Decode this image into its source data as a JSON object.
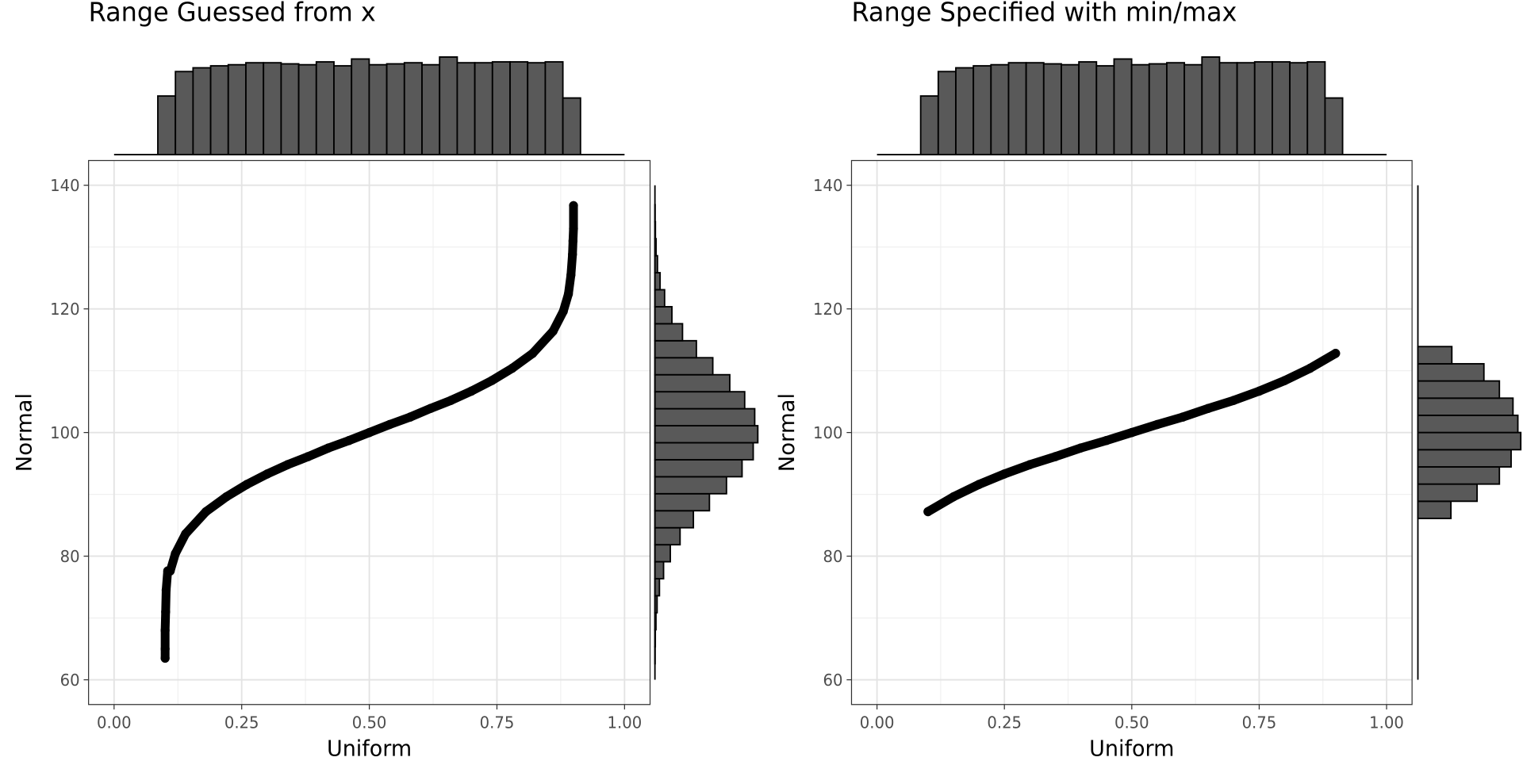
{
  "chart_data": [
    {
      "type": "scatter",
      "title": "Range Guessed from x",
      "x_label": "Uniform",
      "y_label": "Normal",
      "x": [
        0.1,
        0.1,
        0.1,
        0.101,
        0.102,
        0.105,
        0.11,
        0.12,
        0.14,
        0.18,
        0.22,
        0.26,
        0.3,
        0.34,
        0.38,
        0.42,
        0.46,
        0.5,
        0.54,
        0.58,
        0.62,
        0.66,
        0.7,
        0.74,
        0.78,
        0.82,
        0.86,
        0.88,
        0.89,
        0.895,
        0.898,
        0.899,
        0.9,
        0.9
      ],
      "y": [
        63.5,
        65,
        68,
        71,
        74.5,
        77.6,
        77.6,
        80.4,
        83.6,
        87.2,
        89.6,
        91.6,
        93.3,
        94.8,
        96.1,
        97.5,
        98.7,
        100,
        101.3,
        102.5,
        103.9,
        105.2,
        106.7,
        108.4,
        110.4,
        112.8,
        116.4,
        119.6,
        122.4,
        125.5,
        128.8,
        131,
        133,
        136.7
      ],
      "color": "#000000",
      "xlim": [
        -0.05,
        1.05
      ],
      "ylim": [
        56,
        144
      ],
      "xticks": [
        {
          "value": 0,
          "label": "0.00"
        },
        0.25,
        {
          "value": 0.5,
          "label": "0.50"
        },
        0.75,
        {
          "value": 1,
          "label": "1.00"
        }
      ],
      "yticks": [
        60,
        80,
        100,
        120,
        140
      ],
      "grid": true,
      "marginal_x": {
        "bins": [
          0.0857,
          0.1202,
          0.1547,
          0.1892,
          0.2237,
          0.2582,
          0.2927,
          0.3272,
          0.3617,
          0.3962,
          0.4307,
          0.4652,
          0.4997,
          0.5342,
          0.5687,
          0.6032,
          0.6377,
          0.6722,
          0.7067,
          0.7412,
          0.7757,
          0.8102,
          0.8447,
          0.8792,
          0.9137
        ],
        "counts": [
          266,
          377,
          394,
          403,
          408,
          417,
          417,
          412,
          408,
          421,
          403,
          434,
          408,
          412,
          417,
          408,
          443,
          417,
          417,
          421,
          421,
          417,
          421,
          257
        ],
        "color": "#595959"
      },
      "marginal_y": {
        "bins": [
          62.6,
          65.35,
          68.1,
          70.85,
          73.6,
          76.35,
          79.1,
          81.85,
          84.6,
          87.35,
          90.1,
          92.85,
          95.6,
          98.35,
          101.1,
          103.85,
          106.6,
          109.35,
          112.1,
          114.85,
          117.6,
          120.35,
          123.1,
          125.85,
          128.6,
          131.35,
          134.1,
          136.85
        ],
        "counts": [
          2,
          4,
          11,
          23,
          48,
          92,
          164,
          268,
          410,
          581,
          763,
          929,
          1048,
          1097,
          1064,
          957,
          798,
          617,
          442,
          294,
          181,
          103,
          55,
          27,
          12,
          5,
          2
        ],
        "color": "#595959"
      }
    },
    {
      "type": "scatter",
      "title": "Range Specified with min/max",
      "x_label": "Uniform",
      "y_label": "Normal",
      "x": [
        0.1,
        0.15,
        0.2,
        0.25,
        0.3,
        0.35,
        0.4,
        0.45,
        0.5,
        0.55,
        0.6,
        0.65,
        0.7,
        0.75,
        0.8,
        0.85,
        0.9
      ],
      "y": [
        87.2,
        89.6,
        91.6,
        93.3,
        94.8,
        96.1,
        97.5,
        98.7,
        100,
        101.3,
        102.5,
        103.9,
        105.2,
        106.7,
        108.4,
        110.4,
        112.8
      ],
      "color": "#000000",
      "xlim": [
        -0.05,
        1.05
      ],
      "ylim": [
        56,
        144
      ],
      "xticks": [
        {
          "value": 0,
          "label": "0.00"
        },
        0.25,
        {
          "value": 0.5,
          "label": "0.50"
        },
        0.75,
        {
          "value": 1,
          "label": "1.00"
        }
      ],
      "yticks": [
        60,
        80,
        100,
        120,
        140
      ],
      "grid": true,
      "marginal_x": {
        "bins": [
          0.0857,
          0.1202,
          0.1547,
          0.1892,
          0.2237,
          0.2582,
          0.2927,
          0.3272,
          0.3617,
          0.3962,
          0.4307,
          0.4652,
          0.4997,
          0.5342,
          0.5687,
          0.6032,
          0.6377,
          0.6722,
          0.7067,
          0.7412,
          0.7757,
          0.8102,
          0.8447,
          0.8792,
          0.9137
        ],
        "counts": [
          266,
          377,
          394,
          403,
          408,
          417,
          417,
          412,
          408,
          421,
          403,
          434,
          408,
          412,
          417,
          408,
          443,
          417,
          417,
          421,
          421,
          417,
          421,
          257
        ],
        "color": "#595959"
      },
      "marginal_y": {
        "bins": [
          86.1,
          88.88,
          91.66,
          94.44,
          97.22,
          100,
          102.78,
          105.56,
          108.34,
          111.12,
          113.9
        ],
        "counts": [
          352,
          631,
          869,
          994,
          1097,
          1066,
          1014,
          869,
          704,
          362
        ],
        "color": "#595959"
      }
    }
  ]
}
